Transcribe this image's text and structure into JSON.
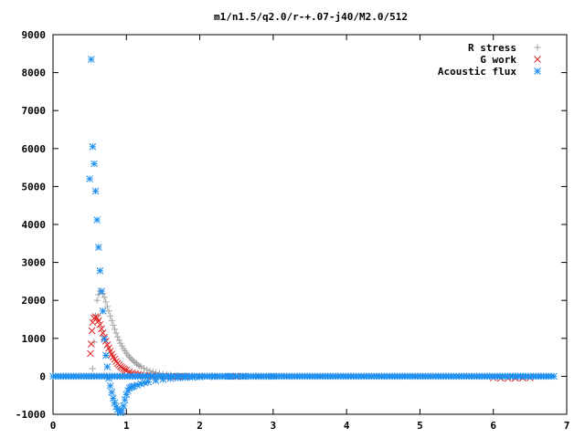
{
  "chart_data": {
    "type": "scatter",
    "title": "m1/n1.5/q2.0/r-+.07-j40/M2.0/512",
    "xlabel": "",
    "ylabel": "",
    "xlim": [
      0,
      7
    ],
    "ylim": [
      -1000,
      9000
    ],
    "x_ticks": [
      "0",
      "1",
      "2",
      "3",
      "4",
      "5",
      "6",
      "7"
    ],
    "y_ticks": [
      "-1000",
      "0",
      "1000",
      "2000",
      "3000",
      "4000",
      "5000",
      "6000",
      "7000",
      "8000",
      "9000"
    ],
    "grid": false,
    "legend_position": "top-right",
    "series": [
      {
        "name": "R stress",
        "marker": "+",
        "color": "#a0a0a0",
        "x": [
          0.52,
          0.54,
          0.56,
          0.58,
          0.6,
          0.62,
          0.64,
          0.66,
          0.68,
          0.7,
          0.72,
          0.74,
          0.76,
          0.78,
          0.8,
          0.82,
          0.84,
          0.86,
          0.88,
          0.9,
          0.92,
          0.94,
          0.96,
          0.98,
          1.0,
          1.02,
          1.04,
          1.06,
          1.08,
          1.1,
          1.12,
          1.14,
          1.16,
          1.18,
          1.2,
          1.24,
          1.28,
          1.32,
          1.36,
          1.4,
          1.45,
          1.5,
          1.55,
          1.6,
          1.7,
          1.8,
          1.9,
          2.0,
          2.1,
          2.2,
          2.4,
          2.6,
          2.8
        ],
        "y": [
          0,
          200,
          900,
          1600,
          2000,
          2150,
          2250,
          2250,
          2180,
          2080,
          1960,
          1840,
          1720,
          1590,
          1470,
          1350,
          1240,
          1140,
          1040,
          950,
          870,
          800,
          730,
          670,
          610,
          560,
          510,
          470,
          430,
          395,
          360,
          330,
          300,
          275,
          250,
          210,
          175,
          145,
          120,
          100,
          80,
          62,
          48,
          38,
          25,
          18,
          12,
          8,
          6,
          4,
          2,
          1,
          0
        ]
      },
      {
        "name": "G work",
        "marker": "x",
        "color": "#e02020",
        "x": [
          0.51,
          0.52,
          0.53,
          0.54,
          0.56,
          0.58,
          0.6,
          0.62,
          0.64,
          0.66,
          0.68,
          0.7,
          0.72,
          0.74,
          0.76,
          0.78,
          0.8,
          0.82,
          0.84,
          0.86,
          0.88,
          0.9,
          0.92,
          0.94,
          0.96,
          0.98,
          1.0,
          1.04,
          1.08,
          1.12,
          1.16,
          1.2,
          1.25,
          1.3,
          1.35,
          1.4,
          1.5,
          1.6,
          1.7,
          1.8,
          2.0,
          2.2,
          2.5,
          2.8,
          6.0,
          6.1,
          6.2,
          6.3,
          6.4,
          6.5
        ],
        "y": [
          600,
          850,
          1200,
          1420,
          1530,
          1570,
          1540,
          1460,
          1360,
          1250,
          1140,
          1030,
          930,
          830,
          740,
          660,
          580,
          510,
          450,
          390,
          340,
          300,
          260,
          230,
          200,
          175,
          150,
          115,
          85,
          65,
          48,
          35,
          22,
          14,
          8,
          4,
          -5,
          -8,
          -6,
          -4,
          -2,
          0,
          0,
          0,
          -40,
          -50,
          -55,
          -50,
          -45,
          -40
        ]
      },
      {
        "name": "Acoustic flux",
        "marker": "*",
        "color": "#1f8fef",
        "x": [
          0.5,
          0.52,
          0.54,
          0.56,
          0.58,
          0.6,
          0.62,
          0.64,
          0.66,
          0.68,
          0.7,
          0.72,
          0.74,
          0.76,
          0.78,
          0.8,
          0.82,
          0.84,
          0.86,
          0.88,
          0.9,
          0.92,
          0.94,
          0.96,
          0.98,
          1.0,
          1.02,
          1.04,
          1.06,
          1.08,
          1.1,
          1.15,
          1.2,
          1.25,
          1.3,
          1.4,
          1.5,
          1.6,
          1.7,
          1.8,
          1.9,
          2.0,
          2.2,
          2.4,
          2.6,
          2.8,
          3.0
        ],
        "y": [
          5200,
          8350,
          6050,
          5600,
          4880,
          4120,
          3400,
          2780,
          2240,
          1720,
          980,
          550,
          250,
          -50,
          -250,
          -420,
          -580,
          -700,
          -800,
          -870,
          -930,
          -960,
          -900,
          -780,
          -620,
          -480,
          -380,
          -310,
          -290,
          -270,
          -260,
          -230,
          -200,
          -170,
          -145,
          -110,
          -80,
          -60,
          -45,
          -35,
          -25,
          -18,
          -10,
          -5,
          -2,
          -1,
          0
        ]
      }
    ]
  }
}
